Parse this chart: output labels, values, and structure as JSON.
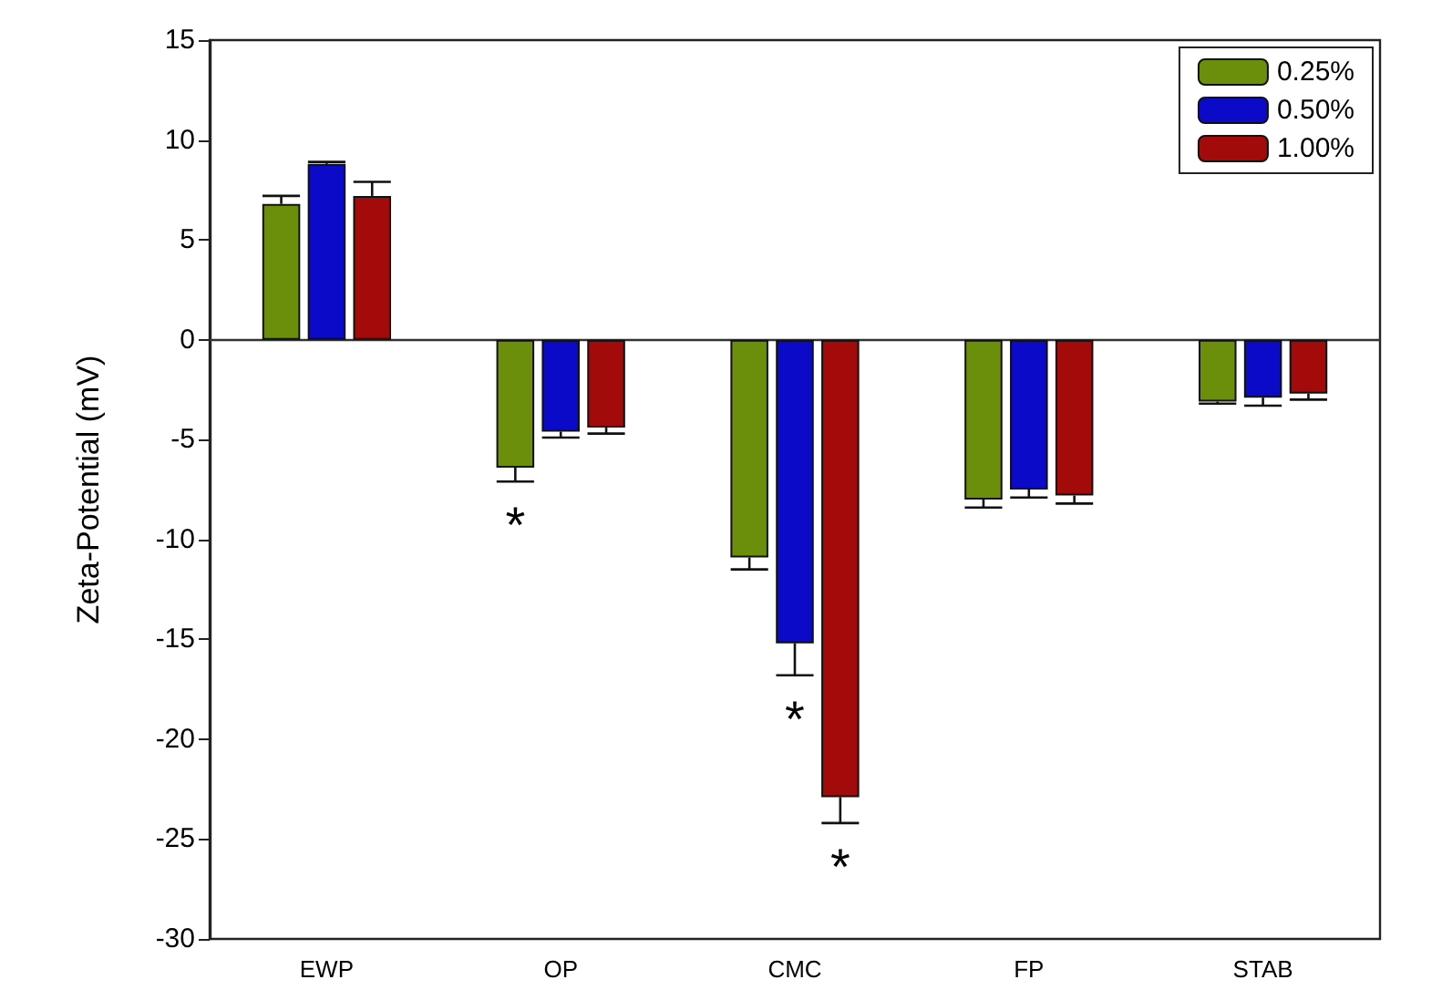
{
  "chart_data": {
    "type": "bar",
    "ylabel": "Zeta-Potential (mV)",
    "categories": [
      "EWP",
      "OP",
      "CMC",
      "FP",
      "STAB"
    ],
    "series": [
      {
        "name": "0.25%",
        "color": "#6b8e0b",
        "values": [
          6.8,
          -6.4,
          -10.9,
          -8.0,
          -3.1
        ],
        "errors": [
          [
            6.8,
            7.2
          ],
          [
            -7.1,
            -6.4
          ],
          [
            -11.5,
            -10.9
          ],
          [
            -8.4,
            -8.0
          ],
          [
            -3.2,
            -3.1
          ]
        ]
      },
      {
        "name": "0.50%",
        "color": "#0a0ac8",
        "values": [
          8.8,
          -4.6,
          -15.2,
          -7.5,
          -2.9
        ],
        "errors": [
          [
            8.8,
            8.9
          ],
          [
            -4.9,
            -4.6
          ],
          [
            -16.8,
            -15.2
          ],
          [
            -7.9,
            -7.5
          ],
          [
            -3.3,
            -2.9
          ]
        ]
      },
      {
        "name": "1.00%",
        "color": "#a30a0a",
        "values": [
          7.2,
          -4.4,
          -22.9,
          -7.8,
          -2.7
        ],
        "errors": [
          [
            7.2,
            7.9
          ],
          [
            -4.7,
            -4.4
          ],
          [
            -24.2,
            -22.9
          ],
          [
            -8.2,
            -7.8
          ],
          [
            -3.0,
            -2.7
          ]
        ]
      }
    ],
    "annotations": [
      "*",
      "*",
      "*"
    ],
    "ylim": [
      -30,
      15
    ],
    "yticks": [
      -30,
      -25,
      -20,
      -15,
      -10,
      -5,
      0,
      5,
      10,
      15
    ],
    "legend": "top right"
  }
}
